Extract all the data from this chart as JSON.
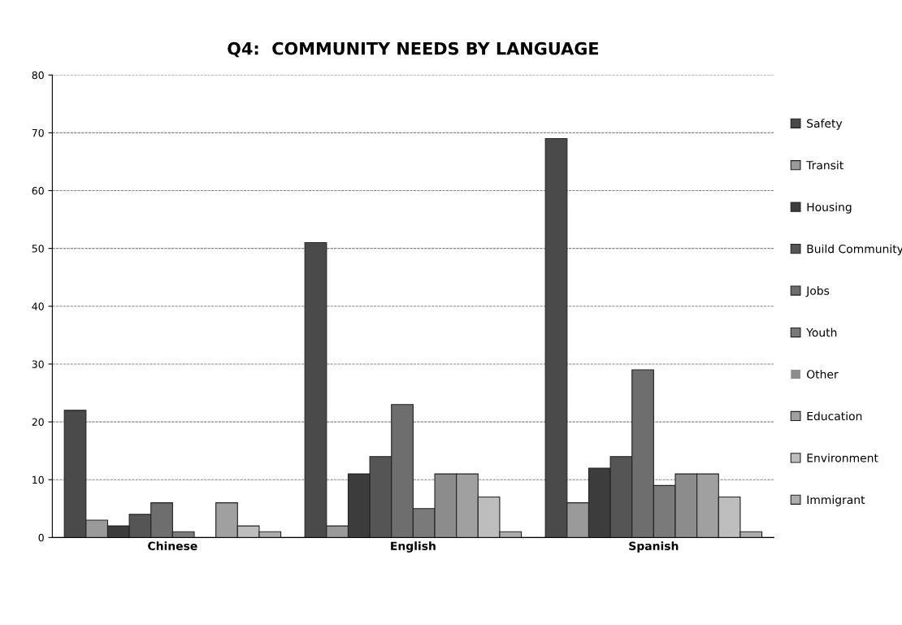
{
  "chart_data": {
    "type": "bar",
    "title": "Q4:  COMMUNITY NEEDS BY LANGUAGE",
    "categories": [
      "Chinese",
      "English",
      "Spanish"
    ],
    "series": [
      {
        "name": "Safety",
        "color": "#4a4a4a",
        "values": [
          22,
          51,
          69
        ]
      },
      {
        "name": "Transit",
        "color": "#9a9a9a",
        "values": [
          3,
          2,
          6
        ]
      },
      {
        "name": "Housing",
        "color": "#3c3c3c",
        "values": [
          2,
          11,
          12
        ]
      },
      {
        "name": "Build Community",
        "color": "#555555",
        "values": [
          4,
          14,
          14
        ]
      },
      {
        "name": "Jobs",
        "color": "#6e6e6e",
        "values": [
          6,
          23,
          29
        ]
      },
      {
        "name": "Youth",
        "color": "#7a7a7a",
        "values": [
          1,
          5,
          9
        ]
      },
      {
        "name": "Other",
        "color": "#8c8c8c",
        "values": [
          0,
          11,
          11
        ]
      },
      {
        "name": "Education",
        "color": "#a0a0a0",
        "values": [
          6,
          11,
          11
        ]
      },
      {
        "name": "Environment",
        "color": "#bdbdbd",
        "values": [
          2,
          7,
          7
        ]
      },
      {
        "name": "Immigrant",
        "color": "#adadad",
        "values": [
          1,
          1,
          1
        ]
      }
    ],
    "ylim": [
      0,
      80
    ],
    "yticks": [
      0,
      10,
      20,
      30,
      40,
      50,
      60,
      70,
      80
    ],
    "grid": "y",
    "legend": "right"
  }
}
